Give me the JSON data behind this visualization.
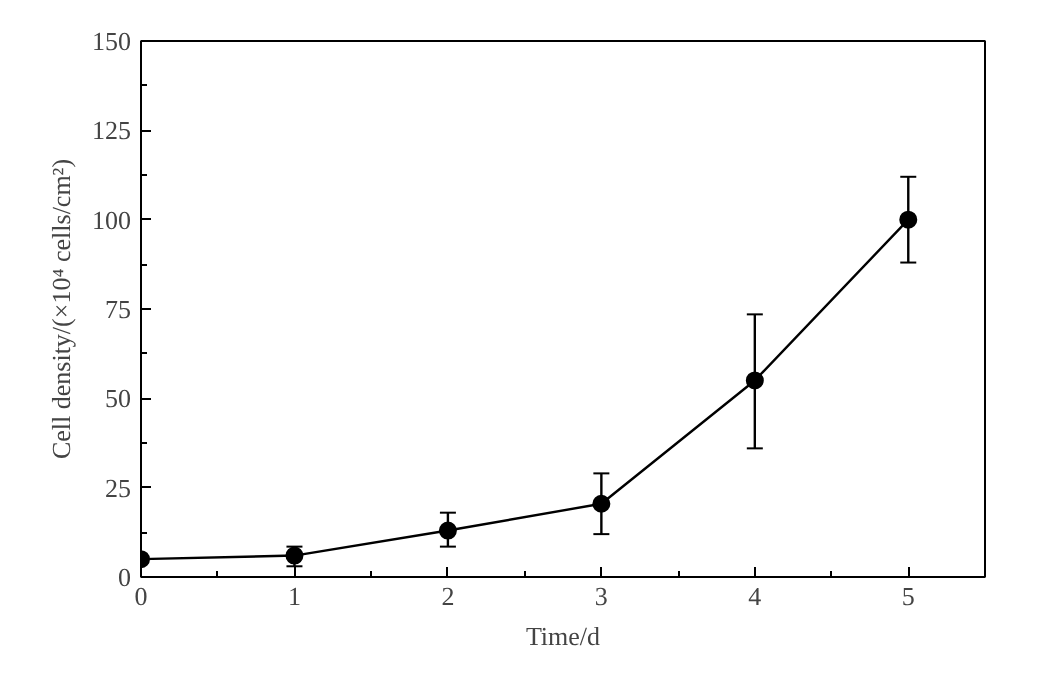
{
  "chart_data": {
    "type": "line",
    "xlabel": "Time/d",
    "ylabel": "Cell density/(×10⁴ cells/cm²)",
    "x": [
      0,
      1,
      2,
      3,
      4,
      5
    ],
    "values": [
      5,
      6,
      13,
      20.5,
      55,
      100
    ],
    "errors": [
      null,
      [
        3,
        8.5
      ],
      [
        8.5,
        18
      ],
      [
        12,
        29
      ],
      [
        36,
        73.5
      ],
      [
        88,
        112
      ]
    ],
    "color": "#000000",
    "marker": "circle",
    "line_style": "solid",
    "grid": false,
    "xlim": [
      0,
      5.5
    ],
    "ylim": [
      0,
      150
    ],
    "xticks": [
      0,
      1,
      2,
      3,
      4,
      5
    ],
    "yticks": [
      0,
      25,
      50,
      75,
      100,
      125,
      150
    ]
  }
}
